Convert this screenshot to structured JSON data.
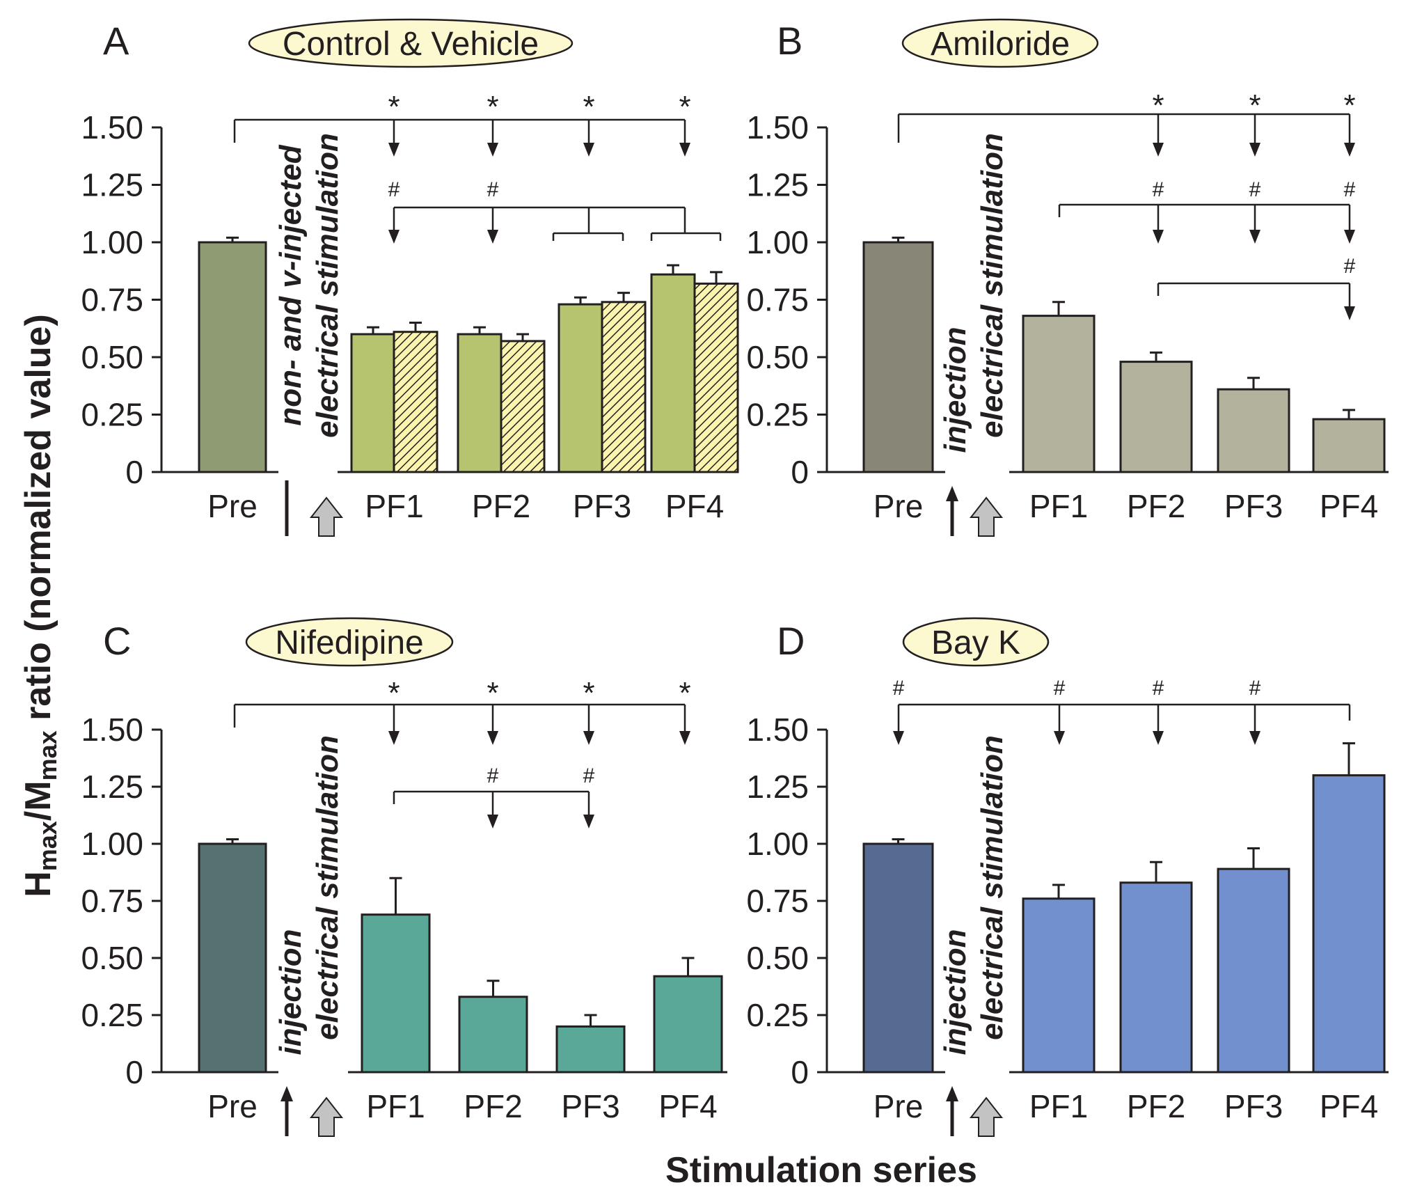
{
  "figure": {
    "y_axis_title": {
      "main": "H",
      "sub1": "max",
      "mid": "/M",
      "sub2": "max",
      "rest": " ratio (normalized value)"
    },
    "x_axis_title": "Stimulation series"
  },
  "colors": {
    "A_pre": "#8f9b72",
    "A_pf": "#b6c46f",
    "A_hatch_bg": "#fbf4ae",
    "B_pre": "#888676",
    "B_pf": "#b3b29c",
    "C_pre": "#567270",
    "C_pf": "#5aa898",
    "D_pre": "#566b92",
    "D_pf": "#7290cd",
    "pill": "#fcf8d0",
    "arrow_gray": "#c3c3c3"
  },
  "chart_data": [
    {
      "panel": "A",
      "title": "Control & Vehicle",
      "type": "bar",
      "categories": [
        "Pre",
        "PF1",
        "PF2",
        "PF3",
        "PF4"
      ],
      "series": [
        {
          "name": "non-injected",
          "values": [
            1.0,
            0.6,
            0.6,
            0.73,
            0.86
          ],
          "errors": [
            0.02,
            0.03,
            0.03,
            0.03,
            0.04
          ]
        },
        {
          "name": "vehicle-injected (hatched)",
          "values": [
            null,
            0.61,
            0.57,
            0.74,
            0.82
          ],
          "errors": [
            null,
            0.04,
            0.03,
            0.04,
            0.05
          ]
        }
      ],
      "ylim": [
        0,
        1.5
      ],
      "y_ticks": [
        "0",
        "0.25",
        "0.50",
        "0.75",
        "1.00",
        "1.25",
        "1.50"
      ],
      "annotation_vertical": [
        "non- and v-injected",
        "electrical stimulation"
      ],
      "significance": [
        {
          "symbol": "*",
          "from": "Pre",
          "to": [
            "PF1",
            "PF2",
            "PF3",
            "PF4"
          ]
        },
        {
          "symbol": "#",
          "from": "PF3/PF4",
          "to": [
            "PF1",
            "PF2"
          ]
        }
      ]
    },
    {
      "panel": "B",
      "title": "Amiloride",
      "type": "bar",
      "categories": [
        "Pre",
        "PF1",
        "PF2",
        "PF3",
        "PF4"
      ],
      "values": [
        1.0,
        0.68,
        0.48,
        0.36,
        0.23
      ],
      "errors": [
        0.02,
        0.06,
        0.04,
        0.05,
        0.04
      ],
      "ylim": [
        0,
        1.5
      ],
      "y_ticks": [
        "0",
        "0.25",
        "0.50",
        "0.75",
        "1.00",
        "1.25",
        "1.50"
      ],
      "annotation_vertical": [
        "injection",
        "electrical stimulation"
      ],
      "significance": [
        {
          "symbol": "*",
          "from": "Pre",
          "to": [
            "PF2",
            "PF3",
            "PF4"
          ]
        },
        {
          "symbol": "#",
          "from": "PF1",
          "to": [
            "PF2",
            "PF3",
            "PF4"
          ]
        },
        {
          "symbol": "#",
          "from": "PF2",
          "to": [
            "PF4"
          ]
        }
      ]
    },
    {
      "panel": "C",
      "title": "Nifedipine",
      "type": "bar",
      "categories": [
        "Pre",
        "PF1",
        "PF2",
        "PF3",
        "PF4"
      ],
      "values": [
        1.0,
        0.69,
        0.33,
        0.2,
        0.42
      ],
      "errors": [
        0.02,
        0.16,
        0.07,
        0.05,
        0.08
      ],
      "ylim": [
        0,
        1.5
      ],
      "y_ticks": [
        "0",
        "0.25",
        "0.50",
        "0.75",
        "1.00",
        "1.25",
        "1.50"
      ],
      "annotation_vertical": [
        "injection",
        "electrical stimulation"
      ],
      "significance": [
        {
          "symbol": "*",
          "from": "Pre",
          "to": [
            "PF1",
            "PF2",
            "PF3",
            "PF4"
          ]
        },
        {
          "symbol": "#",
          "from": "PF1",
          "to": [
            "PF2",
            "PF3"
          ]
        }
      ]
    },
    {
      "panel": "D",
      "title": "Bay K",
      "type": "bar",
      "categories": [
        "Pre",
        "PF1",
        "PF2",
        "PF3",
        "PF4"
      ],
      "values": [
        1.0,
        0.76,
        0.83,
        0.89,
        1.3
      ],
      "errors": [
        0.02,
        0.06,
        0.09,
        0.09,
        0.14
      ],
      "ylim": [
        0,
        1.5
      ],
      "y_ticks": [
        "0",
        "0.25",
        "0.50",
        "0.75",
        "1.00",
        "1.25",
        "1.50"
      ],
      "annotation_vertical": [
        "injection",
        "electrical stimulation"
      ],
      "significance": [
        {
          "symbol": "#",
          "from": "PF4",
          "to": [
            "Pre",
            "PF1",
            "PF2",
            "PF3"
          ]
        }
      ]
    }
  ]
}
